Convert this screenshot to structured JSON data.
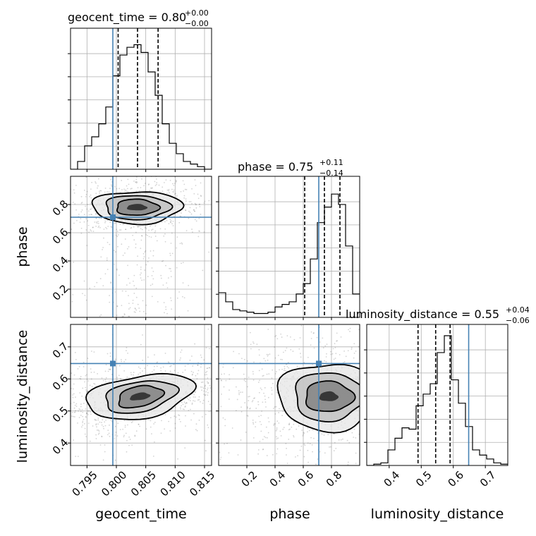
{
  "chart_data": {
    "type": "corner",
    "parameters": [
      "geocent_time",
      "phase",
      "luminosity_distance"
    ],
    "axis_labels": [
      "geocent_time",
      "phase",
      "luminosity_distance"
    ],
    "ranges": [
      [
        0.7922,
        0.8162
      ],
      [
        0.0,
        1.0
      ],
      [
        0.33,
        0.77
      ]
    ],
    "ticks": [
      [
        "0.795",
        "0.800",
        "0.805",
        "0.810",
        "0.815"
      ],
      [
        "0.2",
        "0.4",
        "0.6",
        "0.8"
      ],
      [
        "0.4",
        "0.5",
        "0.6",
        "0.7"
      ]
    ],
    "tick_values": [
      [
        0.795,
        0.8,
        0.805,
        0.81,
        0.815
      ],
      [
        0.2,
        0.4,
        0.6,
        0.8
      ],
      [
        0.4,
        0.5,
        0.6,
        0.7
      ]
    ],
    "titles": [
      {
        "label": "geocent_time = 0.80",
        "plus": "+0.00",
        "minus": "−0.00"
      },
      {
        "label": "phase = 0.75",
        "plus": "+0.11",
        "minus": "−0.14"
      },
      {
        "label": "luminosity_distance = 0.55",
        "plus": "+0.04",
        "minus": "−0.06"
      }
    ],
    "truths": [
      0.7994,
      0.71,
      0.648
    ],
    "quantiles": [
      [
        0.8003,
        0.8036,
        0.8071
      ],
      [
        0.61,
        0.75,
        0.86
      ],
      [
        0.49,
        0.545,
        0.59
      ]
    ],
    "hist_1d": [
      {
        "edges_from": 0.7922,
        "edges_to": 0.8162,
        "counts": [
          0,
          0.06,
          0.18,
          0.25,
          0.35,
          0.48,
          0.72,
          0.88,
          0.94,
          0.96,
          0.9,
          0.75,
          0.57,
          0.35,
          0.2,
          0.12,
          0.06,
          0.04,
          0.02,
          0
        ]
      },
      {
        "edges_from": 0.0,
        "edges_to": 1.0,
        "counts": [
          0.19,
          0.12,
          0.06,
          0.05,
          0.04,
          0.03,
          0.03,
          0.04,
          0.08,
          0.1,
          0.12,
          0.18,
          0.26,
          0.45,
          0.73,
          0.85,
          0.95,
          0.87,
          0.55,
          0.18
        ]
      },
      {
        "edges_from": 0.33,
        "edges_to": 0.77,
        "counts": [
          0,
          0.01,
          0.02,
          0.12,
          0.21,
          0.29,
          0.28,
          0.46,
          0.55,
          0.63,
          0.87,
          1.0,
          0.66,
          0.48,
          0.3,
          0.12,
          0.08,
          0.05,
          0.02,
          0.01
        ]
      }
    ],
    "contours_2d": [
      {
        "x": "geocent_time",
        "y": "phase",
        "center": [
          0.8035,
          0.78
        ],
        "levels_sd": [
          [
            0.004,
            0.06
          ],
          [
            0.0029,
            0.045
          ],
          [
            0.0019,
            0.03
          ],
          [
            0.0009,
            0.012
          ]
        ]
      },
      {
        "x": "geocent_time",
        "y": "luminosity_distance",
        "center": [
          0.804,
          0.545
        ],
        "levels_sd": [
          [
            0.0048,
            0.035
          ],
          [
            0.0032,
            0.025
          ],
          [
            0.002,
            0.017
          ],
          [
            0.0009,
            0.006
          ]
        ],
        "tilt": 0.6
      },
      {
        "x": "phase",
        "y": "luminosity_distance",
        "center": [
          0.78,
          0.545
        ],
        "levels_sd": [
          [
            0.19,
            0.055
          ],
          [
            0.13,
            0.04
          ],
          [
            0.09,
            0.025
          ],
          [
            0.035,
            0.008
          ]
        ]
      }
    ],
    "truth_color": "#4682b4",
    "line_color": "#000000",
    "grid": true
  }
}
